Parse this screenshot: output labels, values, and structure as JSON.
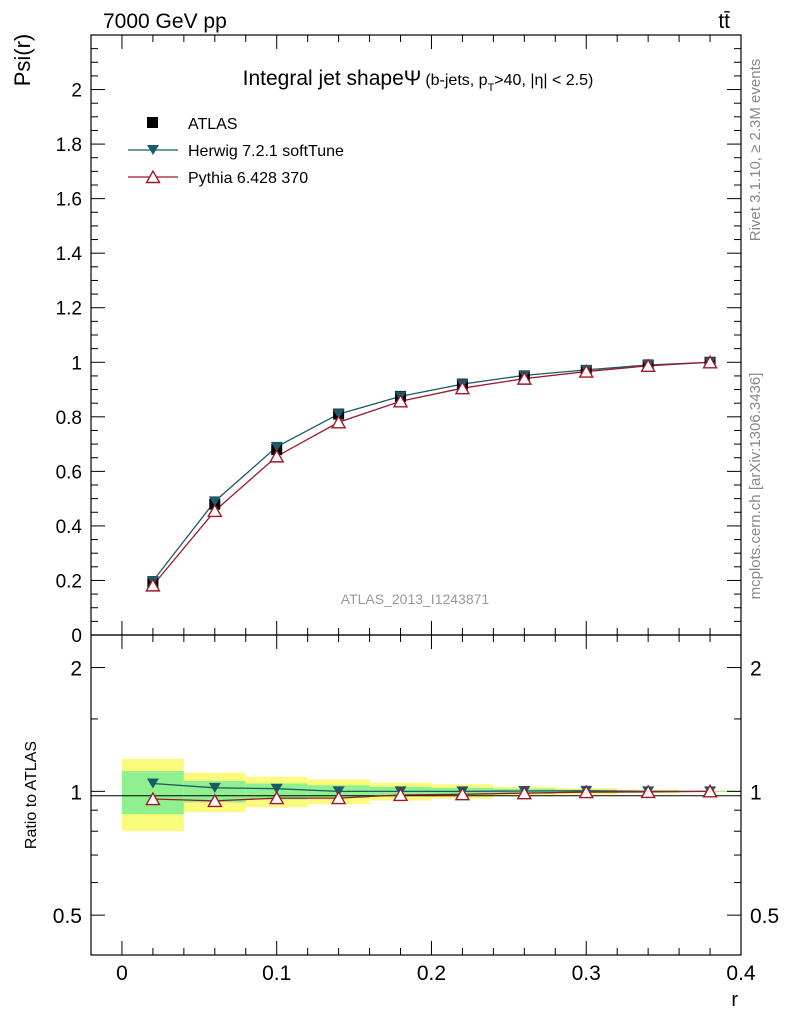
{
  "header": {
    "energy_label": "7000 GeV pp",
    "process_label": "tt̄"
  },
  "side_labels": {
    "rivet": "Rivet 3.1.10, ≥ 2.3M events",
    "mcplots": "mcplots.cern.ch [arXiv:1306.3436]"
  },
  "chart_data": [
    {
      "type": "line",
      "title_main": "Integral jet shape",
      "title_psi": "Ψ",
      "title_detail_1": "(b-jets, p",
      "title_detail_sub": "T",
      "title_detail_2": ">40, |η| < 2.5)",
      "ylabel": "Psi(r)",
      "xlabel": "r",
      "watermark": "ATLAS_2013_I1243871",
      "xlim": [
        -0.02,
        0.4
      ],
      "ylim": [
        0,
        2.2
      ],
      "x_ticks": [
        0,
        0.1,
        0.2,
        0.3,
        0.4
      ],
      "x_tick_labels": [
        "0",
        "0.1",
        "0.2",
        "0.3",
        "0.4"
      ],
      "y_ticks": [
        0,
        0.2,
        0.4,
        0.6,
        0.8,
        1,
        1.2,
        1.4,
        1.6,
        1.8,
        2
      ],
      "y_tick_labels": [
        "0",
        "0.2",
        "0.4",
        "0.6",
        "0.8",
        "1",
        "1.2",
        "1.4",
        "1.6",
        "1.8",
        "2"
      ],
      "x": [
        0.02,
        0.06,
        0.1,
        0.14,
        0.18,
        0.22,
        0.26,
        0.3,
        0.34,
        0.38
      ],
      "series": [
        {
          "name": "ATLAS",
          "marker": "square",
          "color": "#000000",
          "values": [
            0.19,
            0.48,
            0.68,
            0.81,
            0.875,
            0.92,
            0.95,
            0.97,
            0.99,
            1.0
          ]
        },
        {
          "name": "Herwig 7.2.1 softTune",
          "marker": "triangle-down",
          "color": "#1b5a66",
          "values": [
            0.198,
            0.49,
            0.69,
            0.81,
            0.875,
            0.92,
            0.952,
            0.972,
            0.99,
            1.0
          ]
        },
        {
          "name": "Pythia 6.428 370",
          "marker": "triangle-up-open",
          "color": "#a0172c",
          "values": [
            0.182,
            0.455,
            0.655,
            0.78,
            0.857,
            0.905,
            0.94,
            0.966,
            0.987,
            1.0
          ]
        }
      ]
    },
    {
      "type": "line",
      "ylabel": "Ratio to ATLAS",
      "xlim": [
        -0.02,
        0.4
      ],
      "ylim": [
        0.4,
        2.4
      ],
      "y_ticks": [
        0.5,
        1,
        2
      ],
      "y_tick_labels": [
        "0.5",
        "1",
        "2"
      ],
      "x": [
        0.02,
        0.06,
        0.1,
        0.14,
        0.18,
        0.22,
        0.26,
        0.3,
        0.34,
        0.38
      ],
      "bin_edges": [
        0.0,
        0.04,
        0.08,
        0.12,
        0.16,
        0.2,
        0.24,
        0.28,
        0.32,
        0.36,
        0.4
      ],
      "band_colors": {
        "inner": "#8ff08f",
        "outer": "#fafa7d"
      },
      "uncertainty_inner": [
        0.12,
        0.06,
        0.045,
        0.035,
        0.025,
        0.02,
        0.015,
        0.01,
        0.006,
        0.003
      ],
      "uncertainty_outer": [
        0.2,
        0.11,
        0.085,
        0.07,
        0.05,
        0.04,
        0.025,
        0.018,
        0.01,
        0.005
      ],
      "series": [
        {
          "name": "Herwig 7.2.1 softTune",
          "marker": "triangle-down",
          "color": "#1b5a66",
          "values": [
            1.045,
            1.02,
            1.015,
            1.0,
            1.0,
            1.0,
            1.002,
            1.003,
            1.0,
            1.0
          ]
        },
        {
          "name": "Pythia 6.428 370",
          "marker": "triangle-up-open",
          "color": "#a0172c",
          "values": [
            0.958,
            0.948,
            0.963,
            0.963,
            0.98,
            0.984,
            0.99,
            0.996,
            0.997,
            1.0
          ]
        }
      ]
    }
  ]
}
